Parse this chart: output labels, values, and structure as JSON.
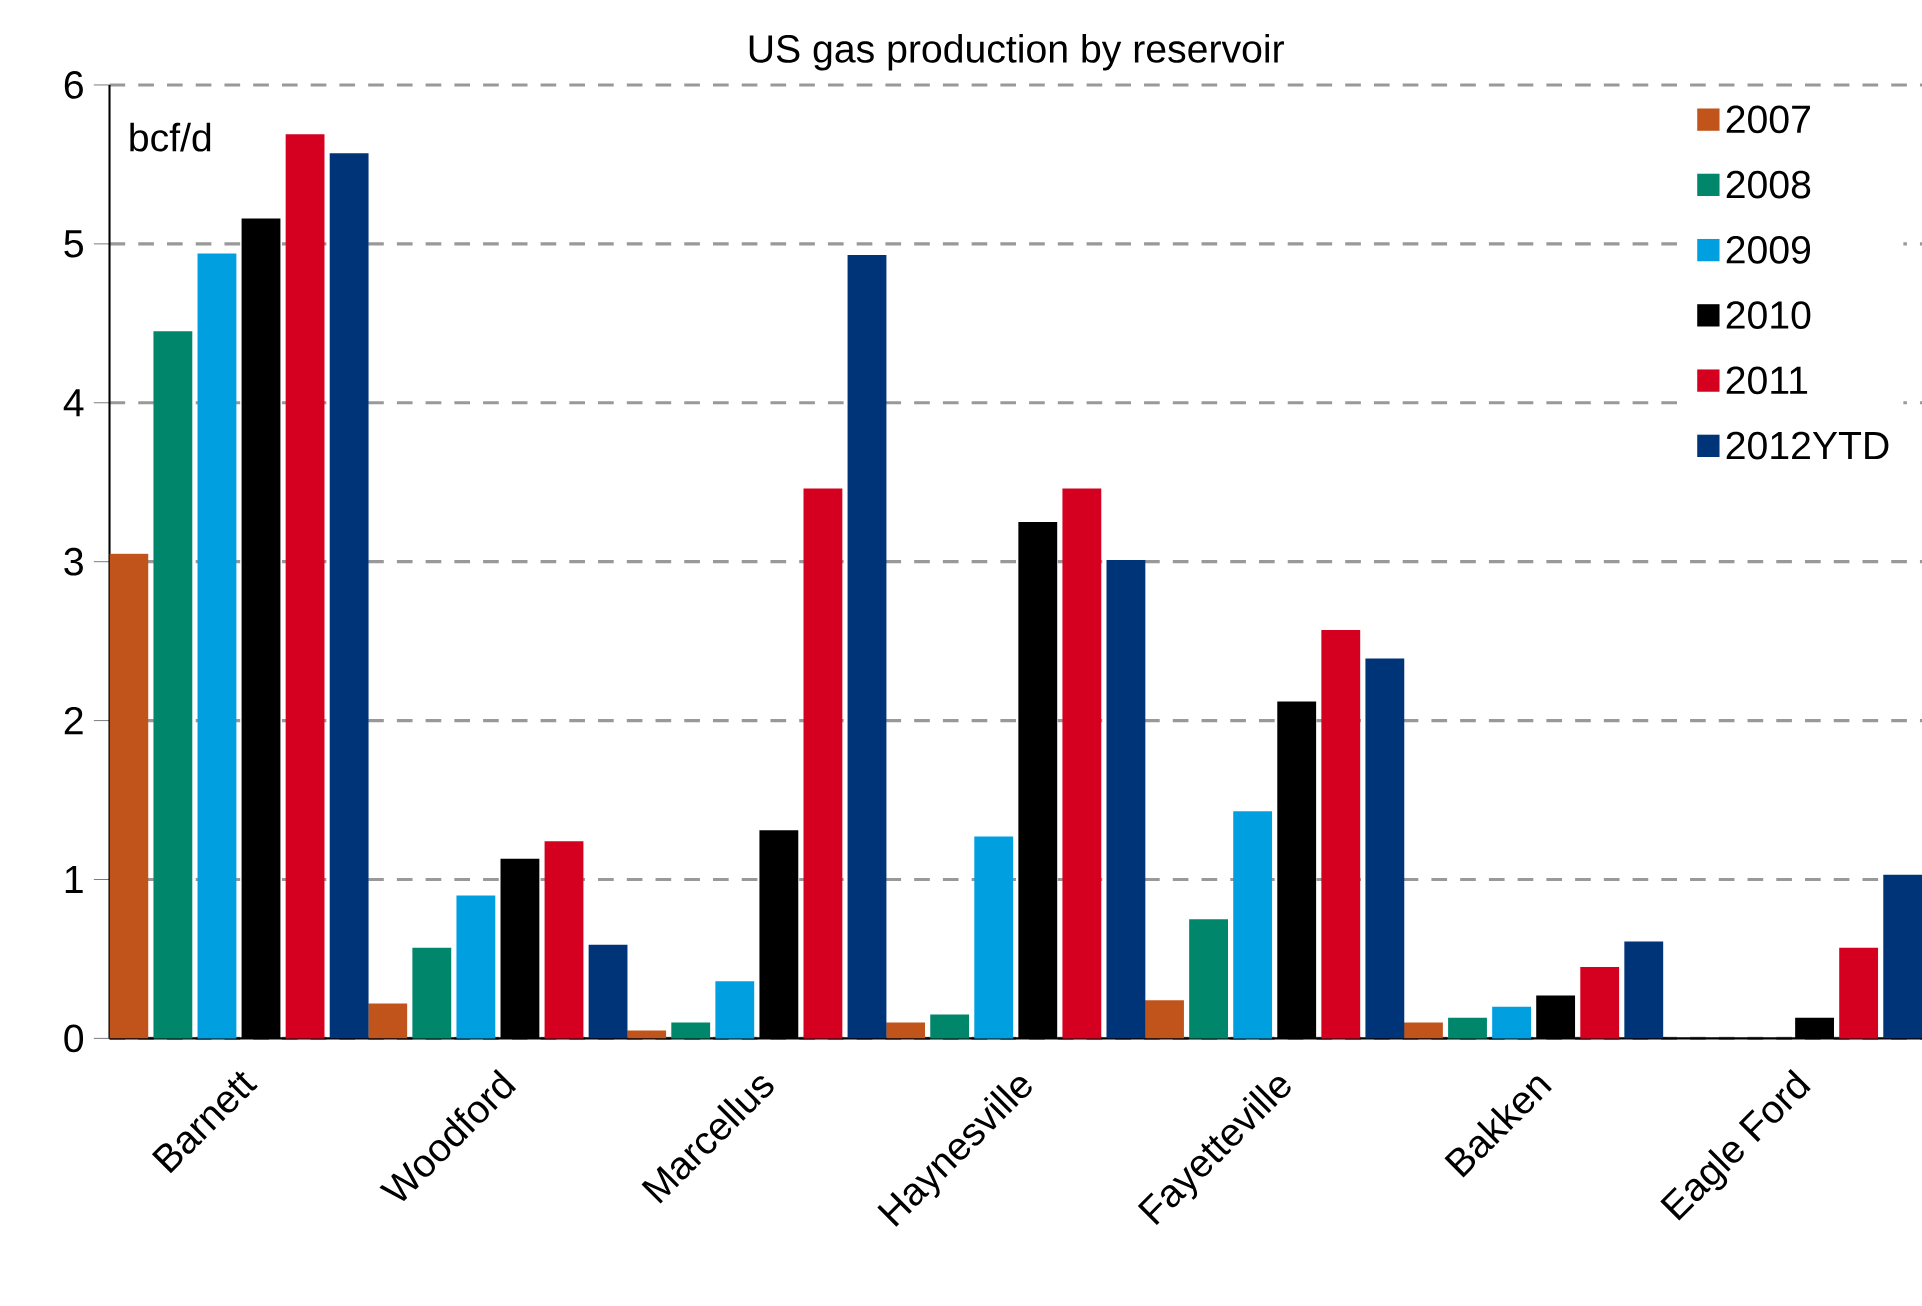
{
  "chart_data": {
    "type": "bar",
    "title": "US gas production by reservoir",
    "ylabel": "bcf/d",
    "categories": [
      "Barnett",
      "Woodford",
      "Marcellus",
      "Haynesville",
      "Fayetteville",
      "Bakken",
      "Eagle Ford"
    ],
    "series": [
      {
        "name": "2007",
        "color": "#c0541a",
        "values": [
          3.05,
          0.22,
          0.05,
          0.1,
          0.24,
          0.1,
          null
        ]
      },
      {
        "name": "2008",
        "color": "#00876b",
        "values": [
          4.45,
          0.57,
          0.1,
          0.15,
          0.75,
          0.13,
          null
        ]
      },
      {
        "name": "2009",
        "color": "#00a0e0",
        "values": [
          4.94,
          0.9,
          0.36,
          1.27,
          1.43,
          0.2,
          null
        ]
      },
      {
        "name": "2010",
        "color": "#000000",
        "values": [
          5.16,
          1.13,
          1.31,
          3.25,
          2.12,
          0.27,
          0.13
        ]
      },
      {
        "name": "2011",
        "color": "#d50020",
        "values": [
          5.69,
          1.24,
          3.46,
          3.46,
          2.57,
          0.45,
          0.57
        ]
      },
      {
        "name": "2012YTD",
        "color": "#003478",
        "values": [
          5.57,
          0.59,
          4.93,
          3.01,
          2.39,
          0.61,
          1.03
        ]
      }
    ],
    "ylim": [
      0,
      6
    ],
    "yticks": [
      0,
      1,
      2,
      3,
      4,
      5,
      6
    ],
    "grid": "y",
    "legend": "top right"
  }
}
